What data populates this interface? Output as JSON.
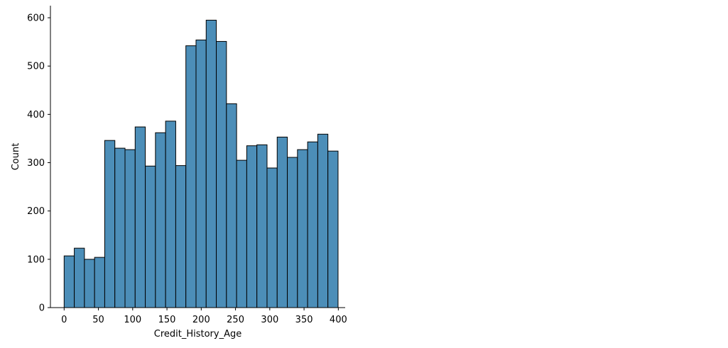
{
  "chart_data": {
    "type": "bar",
    "subtype": "histogram",
    "title": "",
    "xlabel": "Credit_History_Age",
    "ylabel": "Count",
    "xlim": [
      -20,
      410
    ],
    "ylim": [
      0,
      625
    ],
    "xticks": [
      0,
      50,
      100,
      150,
      200,
      250,
      300,
      350,
      400
    ],
    "yticks": [
      0,
      100,
      200,
      300,
      400,
      500,
      600
    ],
    "bin_width": 14.8,
    "bin_start": 0,
    "values": [
      107,
      123,
      100,
      104,
      346,
      330,
      327,
      374,
      293,
      362,
      386,
      294,
      542,
      554,
      595,
      551,
      422,
      305,
      335,
      337,
      289,
      353,
      311,
      327,
      343,
      359,
      324
    ],
    "grid": false,
    "legend": "none",
    "bar_fill": "#4c8eb8",
    "bar_edge": "#000000"
  }
}
